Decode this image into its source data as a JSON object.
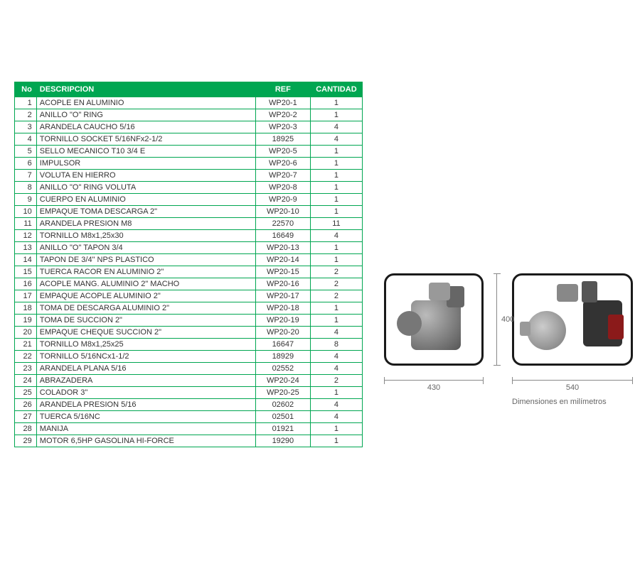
{
  "table": {
    "header_bg": "#00a651",
    "header_color": "#ffffff",
    "border_color": "#00a651",
    "columns": [
      "No",
      "DESCRIPCION",
      "REF",
      "CANTIDAD"
    ],
    "rows": [
      [
        "1",
        "ACOPLE EN ALUMINIO",
        "WP20-1",
        "1"
      ],
      [
        "2",
        "ANILLO \"O\" RING",
        "WP20-2",
        "1"
      ],
      [
        "3",
        "ARANDELA CAUCHO 5/16",
        "WP20-3",
        "4"
      ],
      [
        "4",
        "TORNILLO SOCKET 5/16NFx2-1/2",
        "18925",
        "4"
      ],
      [
        "5",
        "SELLO MECANICO T10 3/4 E",
        "WP20-5",
        "1"
      ],
      [
        "6",
        "IMPULSOR",
        "WP20-6",
        "1"
      ],
      [
        "7",
        "VOLUTA EN HIERRO",
        "WP20-7",
        "1"
      ],
      [
        "8",
        "ANILLO \"O\" RING VOLUTA",
        "WP20-8",
        "1"
      ],
      [
        "9",
        "CUERPO EN ALUMINIO",
        "WP20-9",
        "1"
      ],
      [
        "10",
        "EMPAQUE TOMA DESCARGA 2\"",
        "WP20-10",
        "1"
      ],
      [
        "11",
        "ARANDELA PRESION M8",
        "22570",
        "11"
      ],
      [
        "12",
        "TORNILLO M8x1,25x30",
        "16649",
        "4"
      ],
      [
        "13",
        "ANILLO \"O\" TAPON 3/4",
        "WP20-13",
        "1"
      ],
      [
        "14",
        "TAPON DE 3/4\" NPS PLASTICO",
        "WP20-14",
        "1"
      ],
      [
        "15",
        "TUERCA RACOR EN ALUMINIO 2\"",
        "WP20-15",
        "2"
      ],
      [
        "16",
        "ACOPLE MANG. ALUMINIO 2\" MACHO",
        "WP20-16",
        "2"
      ],
      [
        "17",
        "EMPAQUE ACOPLE ALUMINIO 2\"",
        "WP20-17",
        "2"
      ],
      [
        "18",
        "TOMA DE DESCARGA ALUMINIO 2\"",
        "WP20-18",
        "1"
      ],
      [
        "19",
        "TOMA DE SUCCION 2\"",
        "WP20-19",
        "1"
      ],
      [
        "20",
        "EMPAQUE CHEQUE SUCCION 2\"",
        "WP20-20",
        "4"
      ],
      [
        "21",
        "TORNILLO M8x1,25x25",
        "16647",
        "8"
      ],
      [
        "22",
        "TORNILLO 5/16NCx1-1/2",
        "18929",
        "4"
      ],
      [
        "23",
        "ARANDELA PLANA 5/16",
        "02552",
        "4"
      ],
      [
        "24",
        "ABRAZADERA",
        "WP20-24",
        "2"
      ],
      [
        "25",
        "COLADOR 3\"",
        "WP20-25",
        "1"
      ],
      [
        "26",
        "ARANDELA PRESION 5/16",
        "02602",
        "4"
      ],
      [
        "27",
        "TUERCA 5/16NC",
        "02501",
        "4"
      ],
      [
        "28",
        "MANIJA",
        "01921",
        "1"
      ],
      [
        "29",
        "MOTOR 6,5HP GASOLINA HI-FORCE",
        "19290",
        "1"
      ]
    ]
  },
  "diagram": {
    "width_mm_1": "430",
    "width_mm_2": "540",
    "height_mm": "400",
    "units_caption": "Dimensiones en milímetros",
    "dim_color": "#888888",
    "label_color": "#666666",
    "label_fontsize": 11
  }
}
